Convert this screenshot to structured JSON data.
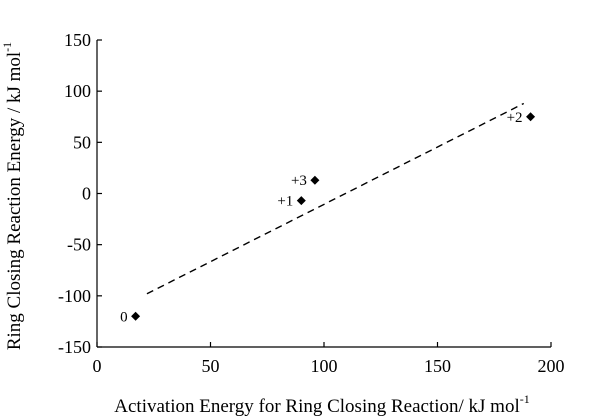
{
  "chart_data": {
    "type": "scatter",
    "title": "",
    "xlabel_main": "Activation Energy for Ring Closing Reaction/ kJ mol",
    "xlabel_sup": "-1",
    "ylabel_main": "Ring Closing Reaction Energy / kJ mol",
    "ylabel_sup": "-1",
    "xlim": [
      0,
      200
    ],
    "ylim": [
      -150,
      150
    ],
    "x_ticks": [
      "0",
      "50",
      "100",
      "150",
      "200"
    ],
    "y_ticks": [
      "150",
      "100",
      "50",
      "0",
      "-50",
      "-100",
      "-150"
    ],
    "grid": false,
    "legend": "none",
    "points": [
      {
        "label": "0",
        "x": 17,
        "y": -120
      },
      {
        "label": "+1",
        "x": 90,
        "y": -7
      },
      {
        "label": "+3",
        "x": 96,
        "y": 13
      },
      {
        "label": "+2",
        "x": 191,
        "y": 75
      }
    ],
    "trendline": {
      "style": "dashed",
      "x": [
        22,
        188
      ],
      "y": [
        -98,
        88
      ]
    },
    "marker_color": "#000000"
  }
}
